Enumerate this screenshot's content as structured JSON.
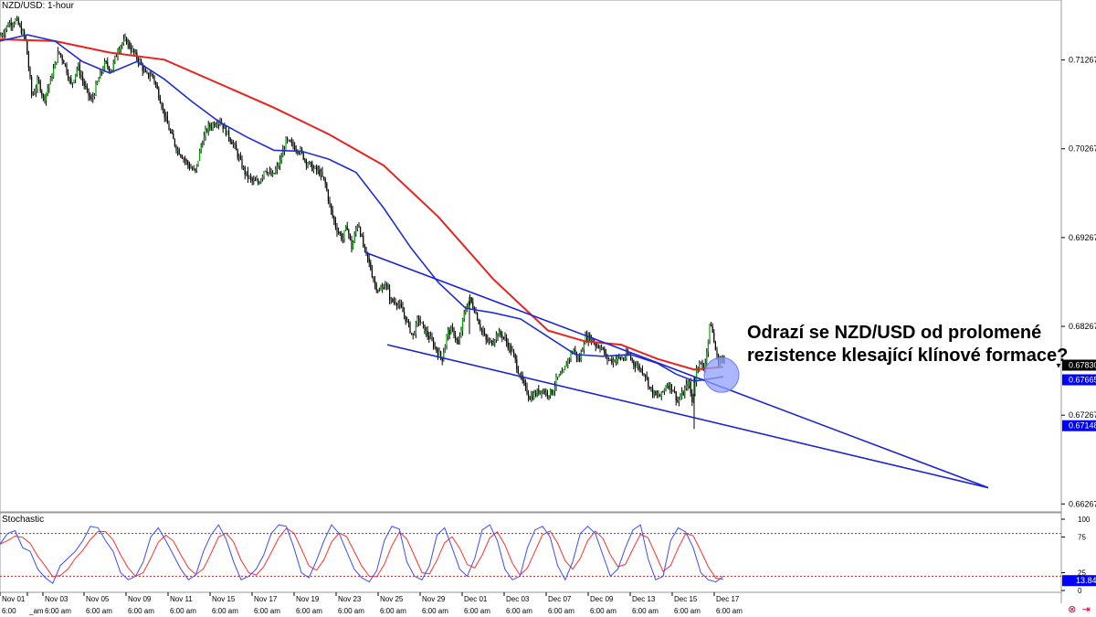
{
  "chart_data": [
    {
      "type": "candlestick",
      "title": "NZD/USD: 1-hour",
      "ylim": [
        0.6626,
        0.7186
      ],
      "y_ticks": [
        "0.71267",
        "0.70267",
        "0.69267",
        "0.68267",
        "0.67267",
        "0.66267"
      ],
      "price_labels": [
        {
          "text": "0.67830",
          "value": 0.6783,
          "color": "#000000",
          "text_color": "#ffffff",
          "marker": "▼"
        },
        {
          "text": "0.67665",
          "value": 0.67665,
          "color": "#0000ff",
          "text_color": "#ffffff",
          "marker": ""
        },
        {
          "text": "0.67148",
          "value": 0.67148,
          "color": "#0000ff",
          "text_color": "#ffffff",
          "marker": ""
        }
      ],
      "price_path": [
        [
          0,
          0.7153
        ],
        [
          10,
          0.7168
        ],
        [
          18,
          0.7171
        ],
        [
          28,
          0.715
        ],
        [
          35,
          0.7085
        ],
        [
          42,
          0.7103
        ],
        [
          48,
          0.7082
        ],
        [
          56,
          0.7106
        ],
        [
          64,
          0.7136
        ],
        [
          70,
          0.7125
        ],
        [
          78,
          0.7098
        ],
        [
          85,
          0.712
        ],
        [
          93,
          0.7096
        ],
        [
          100,
          0.708
        ],
        [
          108,
          0.7105
        ],
        [
          115,
          0.7123
        ],
        [
          122,
          0.7115
        ],
        [
          130,
          0.7142
        ],
        [
          138,
          0.7149
        ],
        [
          146,
          0.7135
        ],
        [
          153,
          0.7124
        ],
        [
          160,
          0.7109
        ],
        [
          167,
          0.711
        ],
        [
          174,
          0.7087
        ],
        [
          180,
          0.7065
        ],
        [
          186,
          0.7046
        ],
        [
          193,
          0.7028
        ],
        [
          200,
          0.7018
        ],
        [
          207,
          0.7007
        ],
        [
          214,
          0.7
        ],
        [
          220,
          0.703
        ],
        [
          227,
          0.705
        ],
        [
          234,
          0.7055
        ],
        [
          240,
          0.706
        ],
        [
          248,
          0.7045
        ],
        [
          255,
          0.7033
        ],
        [
          262,
          0.7015
        ],
        [
          268,
          0.7
        ],
        [
          276,
          0.699
        ],
        [
          283,
          0.6988
        ],
        [
          290,
          0.7005
        ],
        [
          298,
          0.6995
        ],
        [
          306,
          0.701
        ],
        [
          313,
          0.7035
        ],
        [
          320,
          0.7031
        ],
        [
          328,
          0.7025
        ],
        [
          335,
          0.7013
        ],
        [
          342,
          0.7005
        ],
        [
          350,
          0.7
        ],
        [
          356,
          0.6988
        ],
        [
          362,
          0.6958
        ],
        [
          368,
          0.6938
        ],
        [
          375,
          0.6925
        ],
        [
          380,
          0.694
        ],
        [
          385,
          0.6915
        ],
        [
          392,
          0.6945
        ],
        [
          398,
          0.6916
        ],
        [
          405,
          0.6895
        ],
        [
          410,
          0.6875
        ],
        [
          416,
          0.6865
        ],
        [
          422,
          0.6876
        ],
        [
          428,
          0.6855
        ],
        [
          434,
          0.6855
        ],
        [
          440,
          0.6845
        ],
        [
          446,
          0.6831
        ],
        [
          452,
          0.6815
        ],
        [
          458,
          0.6836
        ],
        [
          465,
          0.6822
        ],
        [
          472,
          0.6811
        ],
        [
          478,
          0.68
        ],
        [
          484,
          0.679
        ],
        [
          490,
          0.682
        ],
        [
          496,
          0.6822
        ],
        [
          502,
          0.6805
        ],
        [
          508,
          0.684
        ],
        [
          514,
          0.6858
        ],
        [
          520,
          0.6845
        ],
        [
          526,
          0.6826
        ],
        [
          532,
          0.6811
        ],
        [
          538,
          0.6808
        ],
        [
          544,
          0.6818
        ],
        [
          550,
          0.6817
        ],
        [
          556,
          0.6806
        ],
        [
          562,
          0.6795
        ],
        [
          568,
          0.6775
        ],
        [
          574,
          0.6759
        ],
        [
          580,
          0.6747
        ],
        [
          586,
          0.675
        ],
        [
          592,
          0.6756
        ],
        [
          598,
          0.6752
        ],
        [
          604,
          0.6752
        ],
        [
          610,
          0.6768
        ],
        [
          616,
          0.6772
        ],
        [
          622,
          0.679
        ],
        [
          628,
          0.6801
        ],
        [
          634,
          0.6787
        ],
        [
          640,
          0.6813
        ],
        [
          646,
          0.6815
        ],
        [
          652,
          0.6806
        ],
        [
          658,
          0.6804
        ],
        [
          664,
          0.6791
        ],
        [
          670,
          0.6788
        ],
        [
          676,
          0.6791
        ],
        [
          682,
          0.679
        ],
        [
          688,
          0.6795
        ],
        [
          694,
          0.6785
        ],
        [
          700,
          0.678
        ],
        [
          706,
          0.6774
        ],
        [
          712,
          0.6756
        ],
        [
          718,
          0.6748
        ],
        [
          724,
          0.6749
        ],
        [
          730,
          0.6762
        ],
        [
          736,
          0.6758
        ],
        [
          742,
          0.6742
        ],
        [
          748,
          0.6751
        ],
        [
          754,
          0.6765
        ],
        [
          758,
          0.674
        ],
        [
          762,
          0.6775
        ],
        [
          766,
          0.679
        ],
        [
          770,
          0.6775
        ],
        [
          774,
          0.68
        ],
        [
          778,
          0.6833
        ],
        [
          782,
          0.6808
        ],
        [
          786,
          0.6786
        ],
        [
          790,
          0.6791
        ],
        [
          794,
          0.6783
        ]
      ],
      "ma_blue": [
        [
          0,
          0.7148
        ],
        [
          30,
          0.7155
        ],
        [
          60,
          0.7148
        ],
        [
          90,
          0.7125
        ],
        [
          120,
          0.7112
        ],
        [
          150,
          0.7125
        ],
        [
          180,
          0.7105
        ],
        [
          210,
          0.708
        ],
        [
          240,
          0.7057
        ],
        [
          270,
          0.704
        ],
        [
          300,
          0.7025
        ],
        [
          330,
          0.7024
        ],
        [
          360,
          0.7015
        ],
        [
          390,
          0.7
        ],
        [
          420,
          0.696
        ],
        [
          450,
          0.6915
        ],
        [
          480,
          0.6876
        ],
        [
          510,
          0.6847
        ],
        [
          540,
          0.6842
        ],
        [
          570,
          0.6835
        ],
        [
          600,
          0.6815
        ],
        [
          630,
          0.6795
        ],
        [
          660,
          0.6793
        ],
        [
          690,
          0.6795
        ],
        [
          720,
          0.6785
        ],
        [
          740,
          0.6773
        ],
        [
          760,
          0.6765
        ],
        [
          780,
          0.6768
        ],
        [
          792,
          0.677
        ]
      ],
      "ma_red": [
        [
          0,
          0.715
        ],
        [
          60,
          0.7148
        ],
        [
          120,
          0.7135
        ],
        [
          180,
          0.7127
        ],
        [
          240,
          0.71
        ],
        [
          300,
          0.7073
        ],
        [
          360,
          0.7043
        ],
        [
          420,
          0.7008
        ],
        [
          480,
          0.695
        ],
        [
          540,
          0.688
        ],
        [
          600,
          0.6822
        ],
        [
          640,
          0.681
        ],
        [
          680,
          0.6806
        ],
        [
          720,
          0.679
        ],
        [
          760,
          0.6778
        ],
        [
          792,
          0.6781
        ]
      ],
      "trendlines": [
        {
          "name": "resistance",
          "from": [
            400,
            0.691
          ],
          "to": [
            1082,
            0.6645
          ]
        },
        {
          "name": "support",
          "from": [
            424,
            0.6806
          ],
          "to": [
            1082,
            0.6645
          ]
        }
      ],
      "highlight_circle": {
        "x": 790,
        "y": 0.6772
      },
      "x_ticks": [
        {
          "x": 0,
          "date": "Nov 01",
          "time": "6:00"
        },
        {
          "x": 30,
          "date": "",
          "time": "_am"
        },
        {
          "x": 47,
          "date": "Nov 03",
          "time": "6:00 am"
        },
        {
          "x": 92,
          "date": "Nov 05",
          "time": "6:00 am"
        },
        {
          "x": 138,
          "date": "Nov 09",
          "time": "6:00 am"
        },
        {
          "x": 184,
          "date": "Nov 11",
          "time": "6:00 am"
        },
        {
          "x": 230,
          "date": "Nov 15",
          "time": "6:00 am"
        },
        {
          "x": 276,
          "date": "Nov 17",
          "time": "6:00 am"
        },
        {
          "x": 322,
          "date": "Nov 19",
          "time": "6:00 am"
        },
        {
          "x": 368,
          "date": "Nov 23",
          "time": "6:00 am"
        },
        {
          "x": 414,
          "date": "Nov 25",
          "time": "6:00 am"
        },
        {
          "x": 460,
          "date": "Nov 29",
          "time": "6:00 am"
        },
        {
          "x": 506,
          "date": "Dec 01",
          "time": "6:00 am"
        },
        {
          "x": 552,
          "date": "Dec 03",
          "time": "6:00 am"
        },
        {
          "x": 598,
          "date": "Dec 07",
          "time": "6:00 am"
        },
        {
          "x": 644,
          "date": "Dec 09",
          "time": "6:00 am"
        },
        {
          "x": 690,
          "date": "Dec 13",
          "time": "6:00 am"
        },
        {
          "x": 736,
          "date": "Dec 15",
          "time": "6:00 am"
        },
        {
          "x": 782,
          "date": "Dec 17",
          "time": "6:00 am"
        }
      ]
    },
    {
      "type": "line",
      "title": "Stochastic",
      "ylim": [
        0,
        100
      ],
      "y_ticks": [
        "100",
        "75",
        "25",
        "0"
      ],
      "levels": [
        80,
        20
      ],
      "current_label": {
        "text": "13.84",
        "value": 13.84
      },
      "series": [
        {
          "values_main": [
            65,
            80,
            84,
            60,
            55,
            30,
            18,
            10,
            35,
            45,
            55,
            70,
            90,
            88,
            70,
            55,
            25,
            15,
            20,
            40,
            75,
            88,
            70,
            50,
            30,
            15,
            22,
            55,
            78,
            92,
            72,
            40,
            15,
            20,
            30,
            50,
            80,
            92,
            90,
            60,
            25,
            18,
            42,
            70,
            92,
            80,
            55,
            30,
            18,
            12,
            28,
            70,
            90,
            86,
            40,
            20,
            15,
            35,
            78,
            88,
            60,
            30,
            20,
            45,
            85,
            92,
            70,
            30,
            15,
            20,
            60,
            85,
            90,
            75,
            35,
            15,
            40,
            80,
            90,
            80,
            50,
            20,
            30,
            60,
            85,
            92,
            45,
            15,
            20,
            70,
            88,
            82,
            60,
            25,
            15,
            12,
            20
          ]
        }
      ]
    }
  ],
  "annotation": {
    "line1": "Odrazí se NZD/USD od prolomené",
    "line2": "rezistence klesající klínové formace?"
  },
  "toolbar": {
    "link_icon": "⊗",
    "arrow_icon": "⇥"
  },
  "colors": {
    "price": "#000000",
    "bull_body": "#00aa00",
    "ma_blue": "#1f2fd0",
    "ma_red": "#e8231f",
    "trend": "#1a24d4",
    "stoch_main": "#3b4cff",
    "stoch_signal": "#ff3030",
    "circle_fill": "#8fa0ff"
  }
}
